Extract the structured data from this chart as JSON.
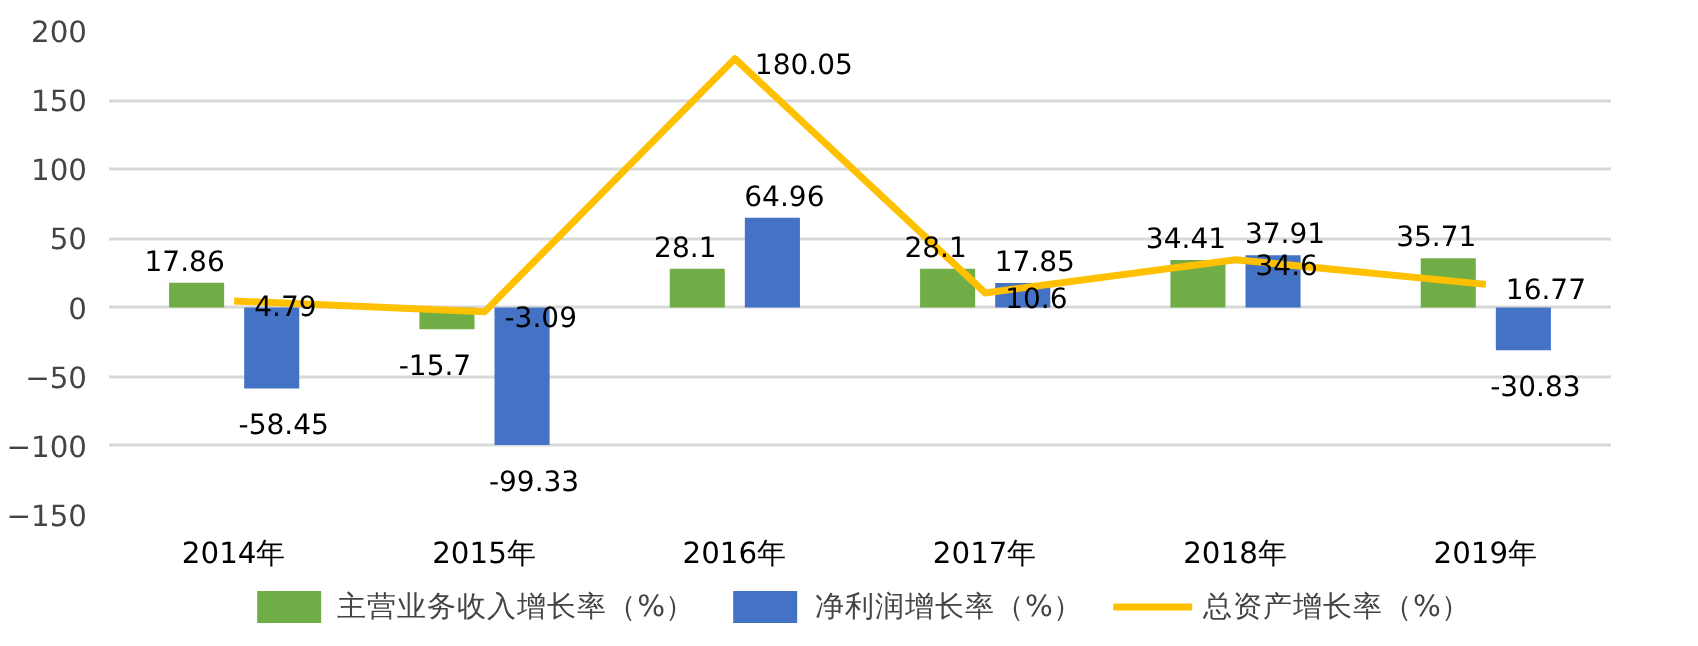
{
  "chart_data": {
    "type": "bar",
    "categories": [
      "2014年",
      "2015年",
      "2016年",
      "2017年",
      "2018年",
      "2019年"
    ],
    "series": [
      {
        "name": "主营业务收入增长率（%）",
        "color": "#70ad47",
        "values": [
          17.86,
          -15.7,
          28.1,
          28.1,
          34.41,
          35.71
        ]
      },
      {
        "name": "净利润增长率（%）",
        "color": "#4472c4",
        "values": [
          -58.45,
          -99.33,
          64.96,
          17.85,
          37.91,
          -30.83
        ]
      },
      {
        "name": "总资产增长率（%）",
        "type": "line",
        "color": "#ffc000",
        "values": [
          4.79,
          -3.09,
          180.05,
          10.6,
          34.6,
          16.77
        ]
      }
    ],
    "ylim": [
      -150,
      200
    ],
    "yticks": [
      -150,
      -100,
      -50,
      0,
      50,
      100,
      150,
      200
    ],
    "grid": "y",
    "legend": "bottom",
    "data_labels": true,
    "marker": "none",
    "line_style": "solid"
  }
}
